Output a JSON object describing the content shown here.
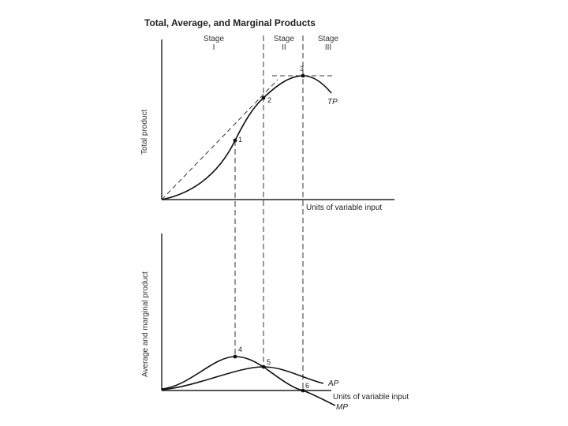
{
  "figure": {
    "title": "Total, Average, and Marginal Products",
    "stages": [
      {
        "name": "Stage",
        "numeral": "I"
      },
      {
        "name": "Stage",
        "numeral": "II"
      },
      {
        "name": "Stage",
        "numeral": "III"
      }
    ],
    "top_panel": {
      "ylabel": "Total product",
      "xlabel": "Units of variable input",
      "curve_label": "TP",
      "points": [
        "1",
        "2",
        "3"
      ]
    },
    "bottom_panel": {
      "ylabel": "Average and marginal product",
      "xlabel": "Units of variable input",
      "curve_labels": [
        "AP",
        "MP"
      ],
      "points": [
        "4",
        "5",
        "6"
      ]
    }
  }
}
